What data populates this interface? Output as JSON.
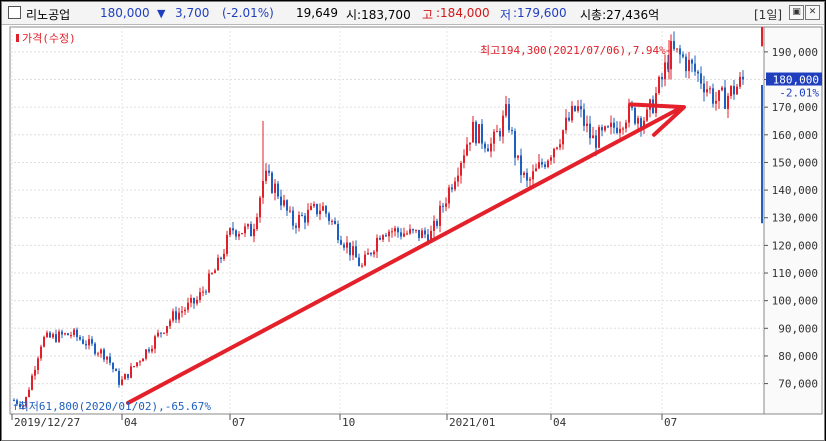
{
  "header": {
    "stock_name": "리노공업",
    "price": "180,000",
    "change_arrow": "▼",
    "change": "3,700",
    "change_pct": "(-2.01%)",
    "volume": "19,649",
    "open": "시:183,700",
    "high_label": "고",
    "high_value": ":184,000",
    "low_label": "저",
    "low_value": ":179,600",
    "market_cap": "시총:27,436억",
    "period": "[1일]"
  },
  "colors": {
    "up": "#e0202a",
    "down": "#1f5fbf",
    "blue_text": "#1f3fbf",
    "red_text": "#d01818"
  },
  "chart_data": {
    "type": "candlestick",
    "legend": "가격(수정)",
    "y_ticks": [
      "190,000",
      "180,000",
      "170,000",
      "160,000",
      "150,000",
      "140,000",
      "130,000",
      "120,000",
      "110,000",
      "100,000",
      "90,000",
      "80,000",
      "70,000"
    ],
    "x_ticks": [
      "2019/12/27",
      "04",
      "07",
      "10",
      "2021/01",
      "04",
      "07"
    ],
    "ylim": [
      59000,
      199000
    ],
    "current_price": "180,000",
    "current_change": "-2.01%",
    "high_annotation": "최고194,300(2021/07/06),7.94%",
    "low_annotation": "최저61,800(2020/01/02),-65.67%",
    "trend_points": [
      [
        63000,
        0
      ],
      [
        120000,
        0.6
      ],
      [
        170000,
        1
      ]
    ]
  }
}
